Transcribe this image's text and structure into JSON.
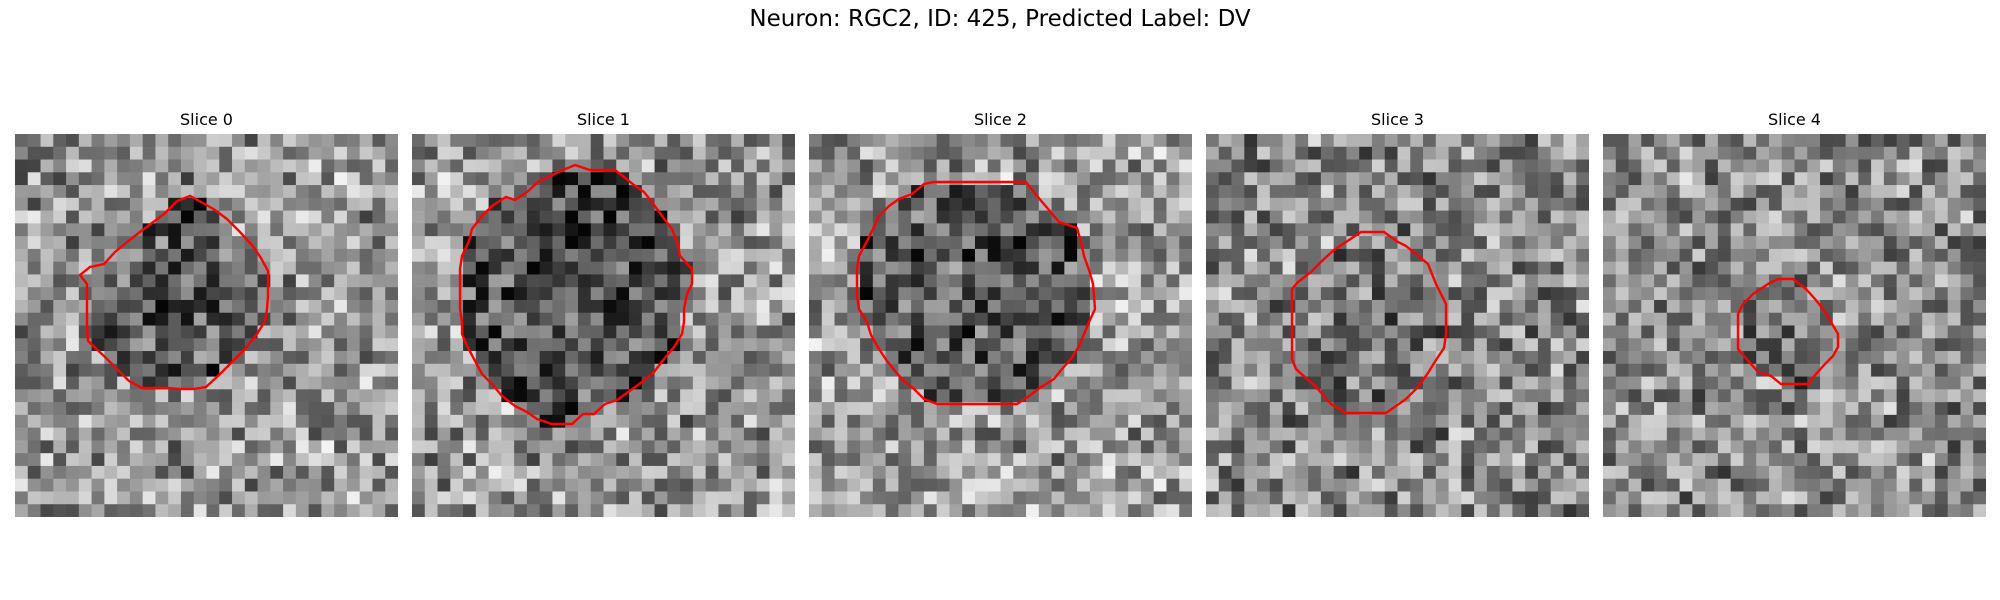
{
  "figure": {
    "title": "Neuron: RGC2, ID: 425, Predicted Label: DV"
  },
  "panels": [
    {
      "title": "Slice 0",
      "seed": 11,
      "mean": 150,
      "inner_mean": 85
    },
    {
      "title": "Slice 1",
      "seed": 23,
      "mean": 150,
      "inner_mean": 80
    },
    {
      "title": "Slice 2",
      "seed": 37,
      "mean": 155,
      "inner_mean": 90
    },
    {
      "title": "Slice 3",
      "seed": 41,
      "mean": 135,
      "inner_mean": 115
    },
    {
      "title": "Slice 4",
      "seed": 53,
      "mean": 140,
      "inner_mean": 120
    }
  ],
  "colors": {
    "contour": "#ff0000",
    "background": "#ffffff"
  },
  "image_grid": 30
}
